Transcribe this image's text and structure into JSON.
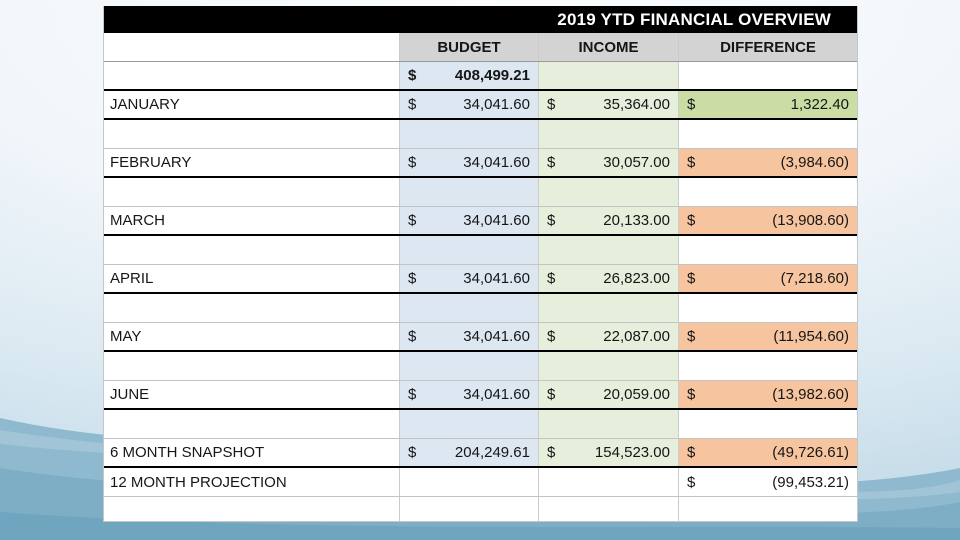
{
  "table": {
    "title": "2019 YTD FINANCIAL OVERVIEW",
    "columns": [
      "BUDGET",
      "INCOME",
      "DIFFERENCE"
    ],
    "currency": "$",
    "annual_budget": "408,499.21",
    "months": [
      {
        "label": "JANUARY",
        "budget": "34,041.60",
        "income": "35,364.00",
        "difference": "1,322.40",
        "negative": false
      },
      {
        "label": "FEBRUARY",
        "budget": "34,041.60",
        "income": "30,057.00",
        "difference": "(3,984.60)",
        "negative": true
      },
      {
        "label": "MARCH",
        "budget": "34,041.60",
        "income": "20,133.00",
        "difference": "(13,908.60)",
        "negative": true
      },
      {
        "label": "APRIL",
        "budget": "34,041.60",
        "income": "26,823.00",
        "difference": "(7,218.60)",
        "negative": true
      },
      {
        "label": "MAY",
        "budget": "34,041.60",
        "income": "22,087.00",
        "difference": "(11,954.60)",
        "negative": true
      },
      {
        "label": "JUNE",
        "budget": "34,041.60",
        "income": "20,059.00",
        "difference": "(13,982.60)",
        "negative": true
      }
    ],
    "totals": [
      {
        "label": "6 MONTH SNAPSHOT",
        "budget": "204,249.61",
        "income": "154,523.00",
        "difference": "(49,726.61)",
        "negative": true,
        "filled": true
      },
      {
        "label": "12 MONTH PROJECTION",
        "budget": null,
        "income": null,
        "difference": "(99,453.21)",
        "negative": true,
        "filled": false
      }
    ]
  },
  "colors": {
    "title_bg": "#000000",
    "title_text": "#ffffff",
    "header_bg": "#d3d3d3",
    "budget_col": "#dce7f2",
    "income_col": "#e6efdb",
    "positive_diff": "#cbdda4",
    "negative_diff": "#f6c49e"
  }
}
